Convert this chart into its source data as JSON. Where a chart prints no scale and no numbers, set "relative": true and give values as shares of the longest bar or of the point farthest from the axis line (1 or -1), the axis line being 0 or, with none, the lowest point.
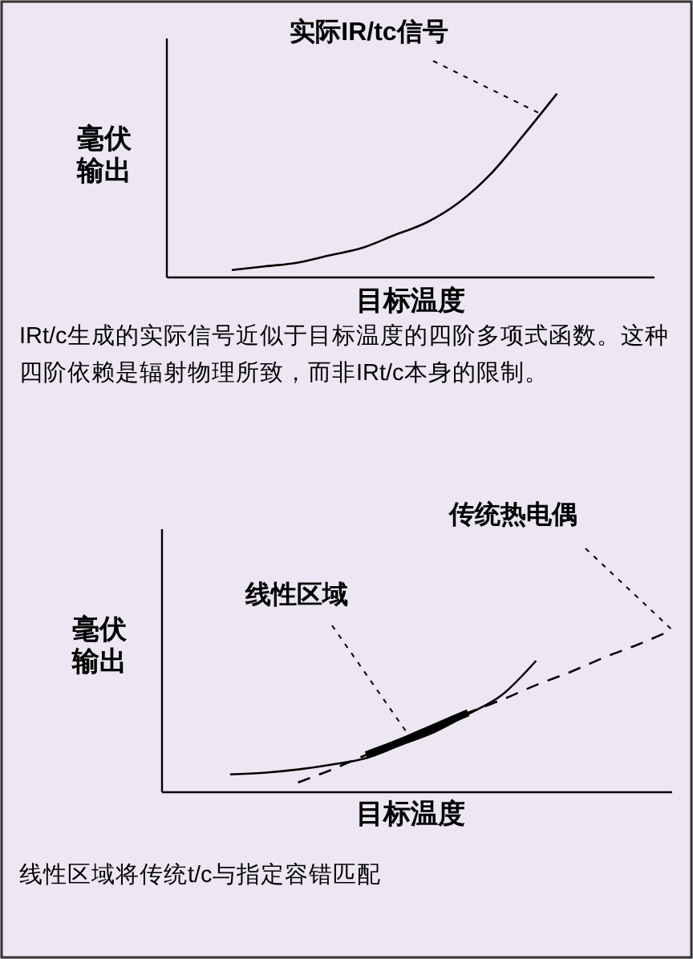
{
  "chart_data": [
    {
      "type": "line",
      "relative": true,
      "xlabel": "目标温度",
      "ylabel": "毫伏输出",
      "categories": [
        null,
        null,
        null,
        null,
        null,
        null,
        null,
        null,
        null,
        null,
        null,
        null,
        null,
        null,
        null,
        null
      ],
      "series": [
        {
          "name": "实际IR/tc信号",
          "color": "#000000",
          "values": [
            null,
            null,
            0.04,
            0.06,
            0.08,
            0.12,
            0.16,
            0.23,
            0.3,
            0.41,
            0.57,
            0.78,
            1,
            null,
            null,
            null
          ]
        }
      ],
      "annotations": [
        "IRt/c生成的实际信号近似于目标温度的四阶多项式函数。这种四阶依赖是辐射物理所致，而非IRt/c本身的限制。"
      ]
    },
    {
      "type": "line",
      "relative": true,
      "xlabel": "目标温度",
      "ylabel": "毫伏输出",
      "categories": [
        null,
        null,
        null,
        null,
        null,
        null,
        null,
        null,
        null,
        null,
        null,
        null,
        null,
        null,
        null,
        null
      ],
      "series": [
        {
          "color": "#000000",
          "values": [
            null,
            null,
            0.11,
            0.12,
            0.14,
            0.17,
            0.21,
            0.29,
            0.37,
            0.48,
            0.6,
            0.81,
            null,
            null,
            null,
            null
          ]
        },
        {
          "name": "传统热电偶",
          "color": "#000000",
          "line_style": "dashed",
          "values": [
            null,
            null,
            null,
            null,
            0.06,
            0.14,
            0.23,
            0.31,
            0.4,
            0.49,
            0.57,
            0.66,
            0.74,
            0.83,
            0.91,
            1
          ]
        },
        {
          "name": "线性区域",
          "color": "#000000",
          "values": [
            null,
            null,
            null,
            null,
            null,
            null,
            0.23,
            0.31,
            0.4,
            0.49,
            null,
            null,
            null,
            null,
            null,
            null
          ]
        }
      ],
      "annotations": [
        "线性区域将传统t/c与指定容错匹配"
      ]
    }
  ]
}
